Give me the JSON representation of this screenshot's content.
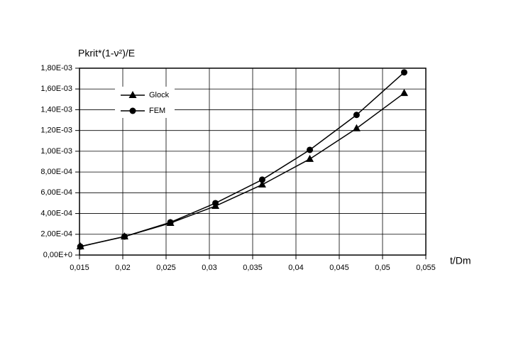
{
  "chart_data": {
    "type": "line",
    "y_label": "Pkrit*(1-ν²)/E",
    "x_label": "t/Dm",
    "xlim": [
      0.015,
      0.055
    ],
    "xticks": [
      {
        "value": 0.015,
        "label": "0,015"
      },
      {
        "value": 0.02,
        "label": "0,02"
      },
      {
        "value": 0.025,
        "label": "0,025"
      },
      {
        "value": 0.03,
        "label": "0,03"
      },
      {
        "value": 0.035,
        "label": "0,035"
      },
      {
        "value": 0.04,
        "label": "0,04"
      },
      {
        "value": 0.045,
        "label": "0,045"
      },
      {
        "value": 0.05,
        "label": "0,05"
      },
      {
        "value": 0.055,
        "label": "0,055"
      }
    ],
    "ylim": [
      0,
      0.0018
    ],
    "yticks": [
      {
        "value": 0,
        "label": "0,00E+0"
      },
      {
        "value": 0.0002,
        "label": "2,00E-04"
      },
      {
        "value": 0.0004,
        "label": "4,00E-04"
      },
      {
        "value": 0.0006,
        "label": "6,00E-04"
      },
      {
        "value": 0.0008,
        "label": "8,00E-04"
      },
      {
        "value": 0.001,
        "label": "1,00E-03"
      },
      {
        "value": 0.0012,
        "label": "1,20E-03"
      },
      {
        "value": 0.0014,
        "label": "1,40E-03"
      },
      {
        "value": 0.0016,
        "label": "1,60E-03"
      },
      {
        "value": 0.0018,
        "label": "1,80E-03"
      }
    ],
    "grid": true,
    "legend": "upper-left",
    "x": [
      0.0151,
      0.0202,
      0.0255,
      0.0307,
      0.0361,
      0.0416,
      0.047,
      0.0525
    ],
    "series": [
      {
        "name": "Glock",
        "color": "#000000",
        "marker": "triangle",
        "values": [
          8.2e-05,
          0.000178,
          0.000308,
          0.000472,
          0.000678,
          0.000925,
          0.00122,
          0.00156
        ]
      },
      {
        "name": "FEM",
        "color": "#000000",
        "marker": "circle",
        "values": [
          8.2e-05,
          0.000178,
          0.000315,
          0.0005,
          0.000726,
          0.001013,
          0.00135,
          0.00176
        ]
      }
    ]
  }
}
